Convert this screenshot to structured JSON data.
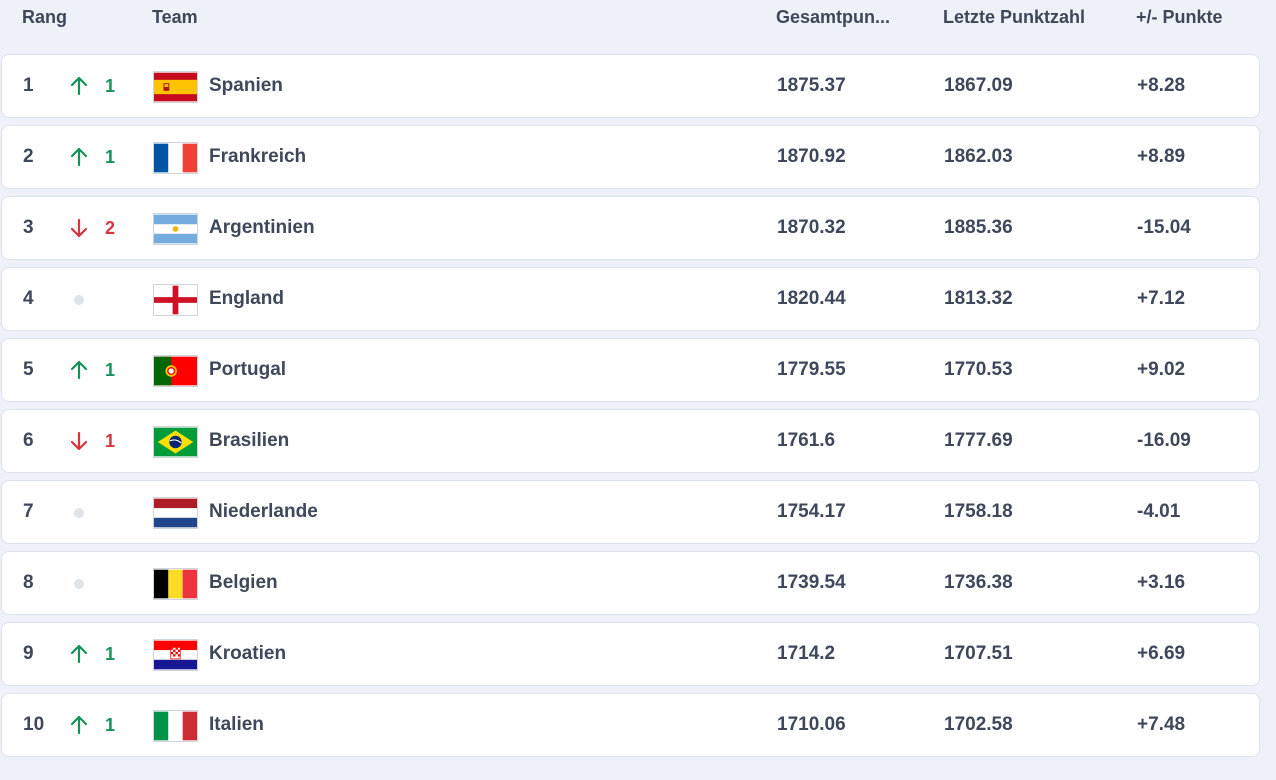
{
  "headers": {
    "rank": "Rang",
    "team": "Team",
    "total": "Gesamtpun...",
    "last": "Letzte Punktzahl",
    "diff": "+/- Punkte"
  },
  "rows": [
    {
      "rank": "1",
      "change_dir": "up",
      "change": "1",
      "flag": "spain-flag-icon",
      "team": "Spanien",
      "total": "1875.37",
      "last": "1867.09",
      "diff": "+8.28"
    },
    {
      "rank": "2",
      "change_dir": "up",
      "change": "1",
      "flag": "france-flag-icon",
      "team": "Frankreich",
      "total": "1870.92",
      "last": "1862.03",
      "diff": "+8.89"
    },
    {
      "rank": "3",
      "change_dir": "down",
      "change": "2",
      "flag": "argentina-flag-icon",
      "team": "Argentinien",
      "total": "1870.32",
      "last": "1885.36",
      "diff": "-15.04"
    },
    {
      "rank": "4",
      "change_dir": "none",
      "change": "",
      "flag": "england-flag-icon",
      "team": "England",
      "total": "1820.44",
      "last": "1813.32",
      "diff": "+7.12"
    },
    {
      "rank": "5",
      "change_dir": "up",
      "change": "1",
      "flag": "portugal-flag-icon",
      "team": "Portugal",
      "total": "1779.55",
      "last": "1770.53",
      "diff": "+9.02"
    },
    {
      "rank": "6",
      "change_dir": "down",
      "change": "1",
      "flag": "brazil-flag-icon",
      "team": "Brasilien",
      "total": "1761.6",
      "last": "1777.69",
      "diff": "-16.09"
    },
    {
      "rank": "7",
      "change_dir": "none",
      "change": "",
      "flag": "netherlands-flag-icon",
      "team": "Niederlande",
      "total": "1754.17",
      "last": "1758.18",
      "diff": "-4.01"
    },
    {
      "rank": "8",
      "change_dir": "none",
      "change": "",
      "flag": "belgium-flag-icon",
      "team": "Belgien",
      "total": "1739.54",
      "last": "1736.38",
      "diff": "+3.16"
    },
    {
      "rank": "9",
      "change_dir": "up",
      "change": "1",
      "flag": "croatia-flag-icon",
      "team": "Kroatien",
      "total": "1714.2",
      "last": "1707.51",
      "diff": "+6.69"
    },
    {
      "rank": "10",
      "change_dir": "up",
      "change": "1",
      "flag": "italy-flag-icon",
      "team": "Italien",
      "total": "1710.06",
      "last": "1702.58",
      "diff": "+7.48"
    }
  ],
  "colors": {
    "up": "#17915a",
    "down": "#d8343f",
    "neutral": "#dfe3ea"
  }
}
